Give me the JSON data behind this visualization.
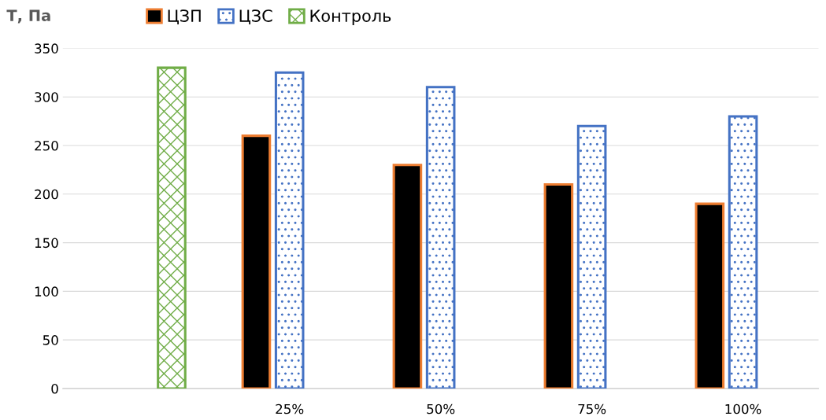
{
  "chart_data": {
    "type": "bar",
    "ylabel": "Т, Па",
    "categories": [
      null,
      "25%",
      "50%",
      "75%",
      "100%"
    ],
    "series": [
      {
        "name": "ЦЗП",
        "color": "#ed7d31",
        "values": [
          null,
          260,
          230,
          210,
          190
        ]
      },
      {
        "name": "ЦЗС",
        "color": "#4472c4",
        "values": [
          null,
          325,
          310,
          270,
          280
        ]
      },
      {
        "name": "Контроль",
        "color": "#70ad47",
        "values": [
          330,
          null,
          null,
          null,
          null
        ]
      }
    ],
    "ylim": [
      0,
      350
    ],
    "yticks": [
      0,
      50,
      100,
      150,
      200,
      250,
      300,
      350
    ],
    "grid": "y",
    "legend": "top"
  }
}
